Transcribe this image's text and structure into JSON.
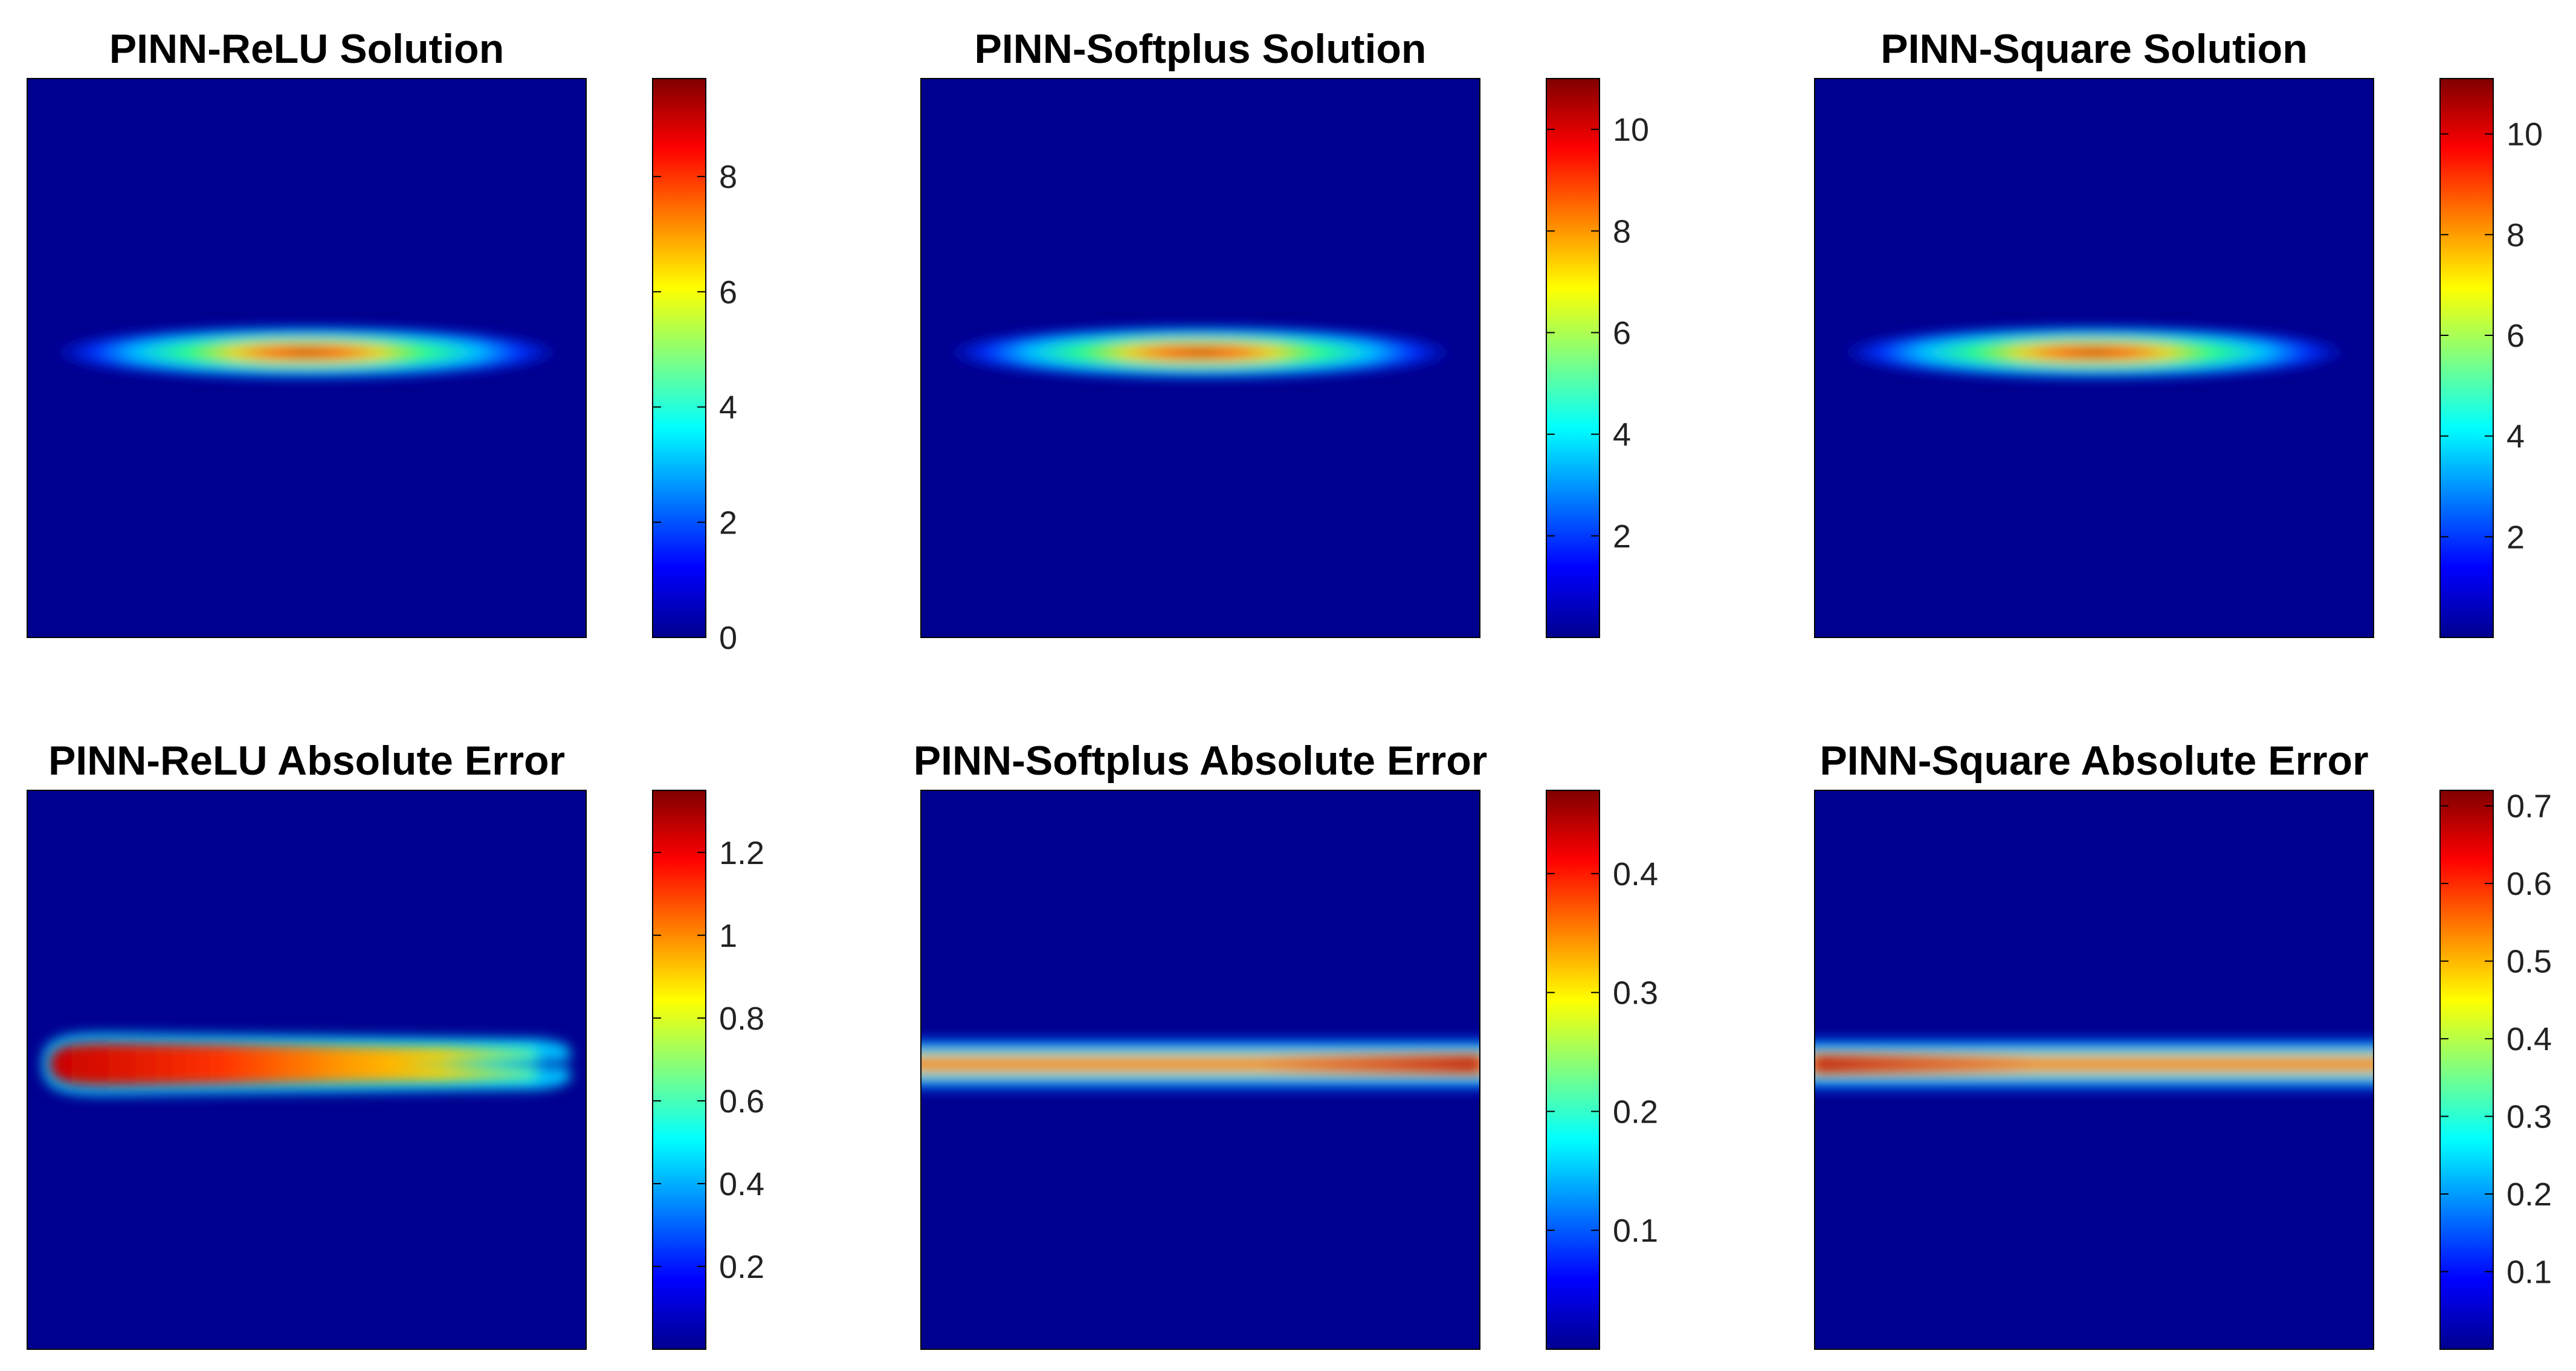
{
  "colormap": "jet",
  "background_color": "#00008f",
  "chart_data": [
    {
      "type": "heatmap",
      "title": "PINN-ReLU Solution",
      "pattern": "ellipse-blob",
      "colorbar": {
        "range": [
          0,
          9.7
        ],
        "ticks": [
          0,
          2,
          4,
          6,
          8
        ],
        "tick_labels": [
          "0",
          "2",
          "4",
          "6",
          "8"
        ]
      }
    },
    {
      "type": "heatmap",
      "title": "PINN-Softplus Solution",
      "pattern": "ellipse-blob",
      "colorbar": {
        "range": [
          0,
          11
        ],
        "ticks": [
          2,
          4,
          6,
          8,
          10
        ],
        "tick_labels": [
          "2",
          "4",
          "6",
          "8",
          "10"
        ]
      }
    },
    {
      "type": "heatmap",
      "title": "PINN-Square Solution",
      "pattern": "ellipse-blob",
      "colorbar": {
        "range": [
          0,
          11.1
        ],
        "ticks": [
          2,
          4,
          6,
          8,
          10
        ],
        "tick_labels": [
          "2",
          "4",
          "6",
          "8",
          "10"
        ]
      }
    },
    {
      "type": "heatmap",
      "title": "PINN-ReLU Absolute Error",
      "pattern": "forked-band",
      "colorbar": {
        "range": [
          0,
          1.35
        ],
        "ticks": [
          0.2,
          0.4,
          0.6,
          0.8,
          1,
          1.2
        ],
        "tick_labels": [
          "0.2",
          "0.4",
          "0.6",
          "0.8",
          "1",
          "1.2"
        ]
      }
    },
    {
      "type": "heatmap",
      "title": "PINN-Softplus Absolute Error",
      "pattern": "horizontal-band",
      "colorbar": {
        "range": [
          0,
          0.47
        ],
        "ticks": [
          0.1,
          0.2,
          0.3,
          0.4
        ],
        "tick_labels": [
          "0.1",
          "0.2",
          "0.3",
          "0.4"
        ]
      }
    },
    {
      "type": "heatmap",
      "title": "PINN-Square Absolute Error",
      "pattern": "horizontal-band",
      "colorbar": {
        "range": [
          0,
          0.72
        ],
        "ticks": [
          0.1,
          0.2,
          0.3,
          0.4,
          0.5,
          0.6,
          0.7
        ],
        "tick_labels": [
          "0.1",
          "0.2",
          "0.3",
          "0.4",
          "0.5",
          "0.6",
          "0.7"
        ]
      }
    }
  ]
}
